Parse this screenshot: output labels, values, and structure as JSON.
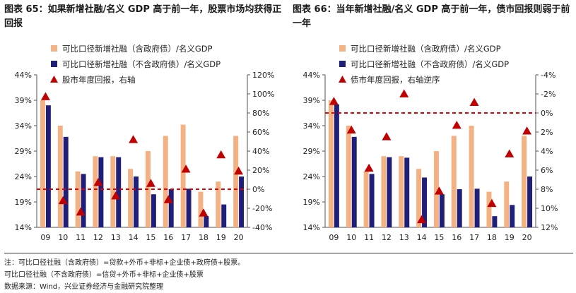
{
  "panels": {
    "left": {
      "title": "图表 65：如果新增社融/名义 GDP 高于前一年，股票市场均获得正回报"
    },
    "right": {
      "title": "图表 66：当年新增社融/名义 GDP 高于前一年，债市回报则弱于前一年"
    }
  },
  "notes": {
    "line1": "注：可比口径社融（含政府债）=贷款+外币+非标+企业债+政府债+股票。",
    "line2": "可比口径社融（不含政府债）=信贷+外币+非标+企业债+股票",
    "line3": "数据来源：Wind，兴业证券经济与金融研究院整理"
  },
  "colors": {
    "bar_incl": "#f4b183",
    "bar_excl": "#1f1f7a",
    "marker": "#c00000",
    "refline": "#e00000"
  },
  "chart_data": [
    {
      "type": "bar",
      "categories": [
        "09",
        "10",
        "11",
        "12",
        "13",
        "14",
        "15",
        "16",
        "17",
        "18",
        "19",
        "20"
      ],
      "series": [
        {
          "name": "可比口径新增社融（含政府债）/名义GDP",
          "type": "bar",
          "axis": "left",
          "values": [
            39.0,
            34.0,
            25.0,
            28.0,
            28.0,
            25.5,
            29.0,
            32.0,
            34.2,
            21.0,
            23.0,
            32.0
          ]
        },
        {
          "name": "可比口径新增社融（不含政府债）/名义GDP",
          "type": "bar",
          "axis": "left",
          "values": [
            38.0,
            31.8,
            24.5,
            27.8,
            27.8,
            24.0,
            20.5,
            21.5,
            21.6,
            16.2,
            18.5,
            24.0
          ]
        },
        {
          "name": "股市年度回报，右轴",
          "type": "marker",
          "axis": "right",
          "values": [
            97,
            -12,
            -24,
            7,
            -7,
            52,
            6,
            -11,
            21,
            -25,
            36,
            19
          ]
        }
      ],
      "y_left": {
        "ticks": [
          "14%",
          "19%",
          "24%",
          "29%",
          "34%",
          "39%",
          "44%"
        ],
        "range": [
          14,
          44
        ]
      },
      "y_right": {
        "ticks": [
          "-40%",
          "-20%",
          "0%",
          "20%",
          "40%",
          "60%",
          "80%",
          "100%",
          "120%"
        ],
        "range": [
          -40,
          120
        ]
      },
      "reference_line": {
        "axis": "right",
        "value": 0
      }
    },
    {
      "type": "bar",
      "categories": [
        "09",
        "10",
        "11",
        "12",
        "13",
        "14",
        "15",
        "16",
        "17",
        "18",
        "19",
        "20"
      ],
      "series": [
        {
          "name": "可比口径新增社融（含政府债）/名义GDP",
          "type": "bar",
          "axis": "left",
          "values": [
            39.0,
            34.0,
            25.0,
            28.0,
            28.0,
            25.5,
            29.0,
            32.0,
            34.0,
            21.0,
            23.0,
            32.0
          ]
        },
        {
          "name": "可比口径新增社融（不含政府债）/名义GDP",
          "type": "bar",
          "axis": "left",
          "values": [
            38.2,
            31.8,
            24.5,
            27.8,
            27.7,
            23.8,
            20.5,
            21.5,
            21.6,
            16.2,
            18.4,
            24.0
          ]
        },
        {
          "name": "债市年度回报，右轴逆序",
          "type": "marker",
          "axis": "right",
          "values": [
            -1.2,
            1.8,
            5.8,
            2.5,
            -2.0,
            11.2,
            8.2,
            1.3,
            -1.1,
            9.5,
            4.3,
            1.9
          ]
        }
      ],
      "y_left": {
        "ticks": [
          "14%",
          "19%",
          "24%",
          "29%",
          "34%",
          "39%",
          "44%"
        ],
        "range": [
          14,
          44
        ]
      },
      "y_right": {
        "ticks": [
          "-4%",
          "-2%",
          "0%",
          "2%",
          "4%",
          "6%",
          "8%",
          "10%",
          "12%"
        ],
        "range": [
          -4,
          12
        ],
        "reversed": true
      },
      "reference_line": {
        "axis": "right",
        "value": 0
      }
    }
  ]
}
